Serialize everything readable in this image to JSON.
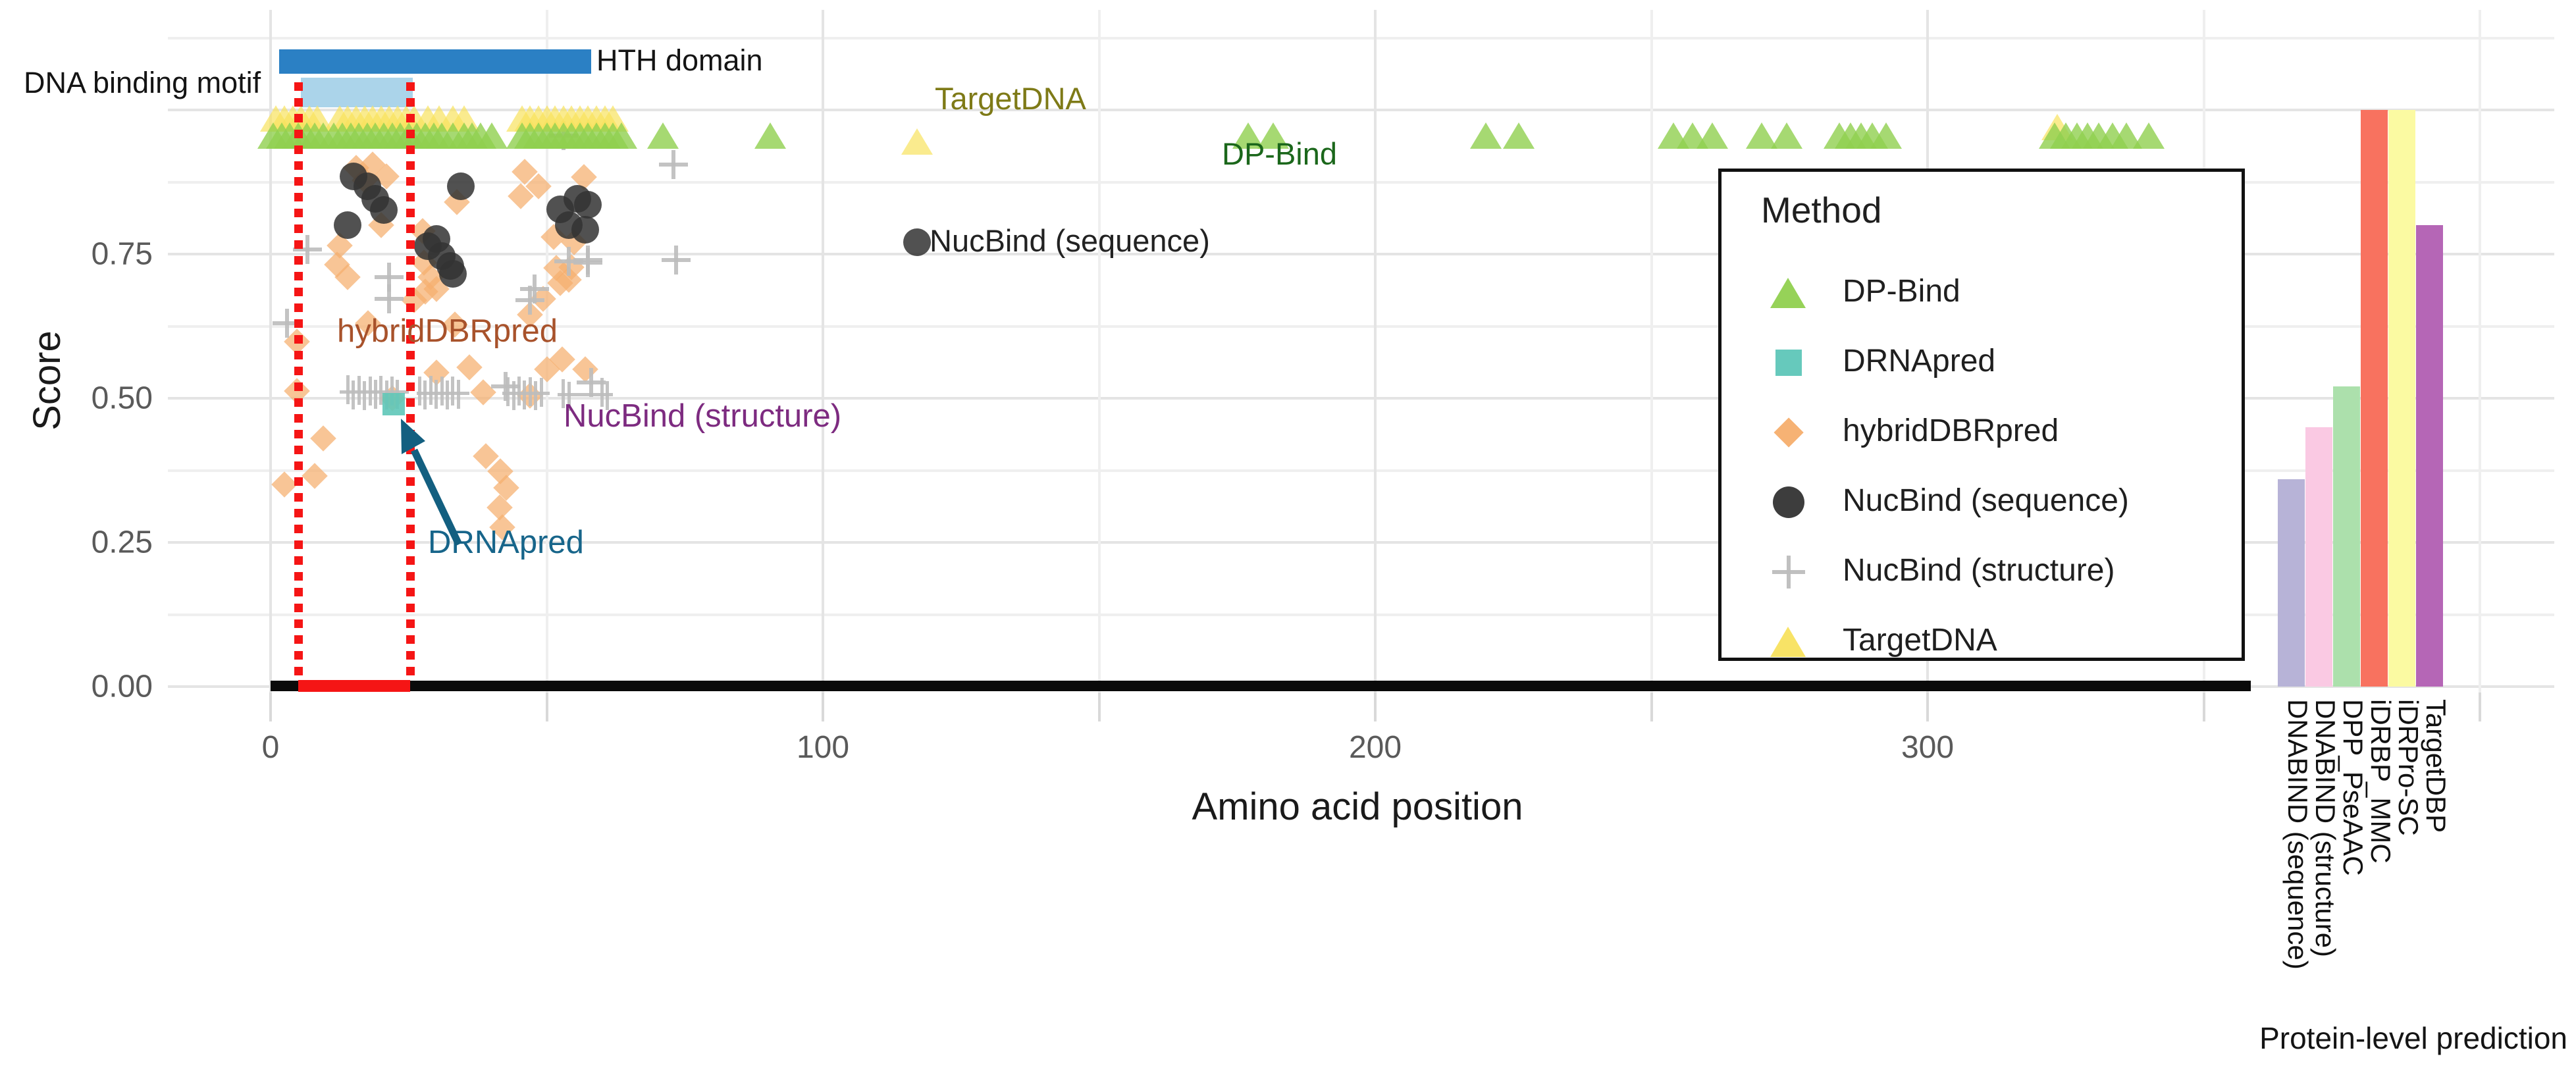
{
  "chart_data": {
    "type": "scatter",
    "title": "",
    "x_axis": {
      "label": "Amino acid position",
      "ticks": [
        0,
        100,
        200,
        300
      ],
      "minor_gridlines": [
        50,
        150,
        250,
        350,
        400
      ],
      "range": [
        -18,
        413
      ]
    },
    "y_axis": {
      "label": "Score",
      "ticks": [
        {
          "value": 0.0,
          "text": "0.00"
        },
        {
          "value": 0.25,
          "text": "0.25"
        },
        {
          "value": 0.5,
          "text": "0.50"
        },
        {
          "value": 0.75,
          "text": "0.75"
        }
      ],
      "major_gridlines": [
        0,
        0.25,
        0.5,
        0.75,
        1.0
      ],
      "minor_gridlines": [
        0.125,
        0.375,
        0.625,
        0.875,
        1.125
      ],
      "range": [
        -0.02,
        1.17
      ]
    },
    "legend": {
      "title": "Method",
      "items": [
        {
          "label": "DP-Bind",
          "marker": "triangle",
          "color": "#90d04f"
        },
        {
          "label": "DRNApred",
          "marker": "square",
          "color": "#5ec6b8"
        },
        {
          "label": "hybridDBRpred",
          "marker": "diamond",
          "color": "#f5ae6d"
        },
        {
          "label": "NucBind (sequence)",
          "marker": "circle",
          "color": "#333333"
        },
        {
          "label": "NucBind (structure)",
          "marker": "plus",
          "color": "#bdbdbd"
        },
        {
          "label": "TargetDNA",
          "marker": "triangle",
          "color": "#f8e25e"
        }
      ]
    },
    "series": [
      {
        "name": "hybridDBRpred",
        "marker": "diamond",
        "color": "#f5ae6d",
        "opacity": 0.72,
        "points": [
          [
            15.5,
            0.9
          ],
          [
            18.5,
            0.905
          ],
          [
            17,
            0.878
          ],
          [
            21,
            0.885
          ],
          [
            33.7,
            0.84
          ],
          [
            46,
            0.893
          ],
          [
            48.5,
            0.868
          ],
          [
            45.3,
            0.85
          ],
          [
            56.7,
            0.883
          ],
          [
            20,
            0.8
          ],
          [
            27.5,
            0.79
          ],
          [
            12.5,
            0.765
          ],
          [
            51.2,
            0.78
          ],
          [
            55,
            0.77
          ],
          [
            12,
            0.732
          ],
          [
            14,
            0.71
          ],
          [
            27.8,
            0.735
          ],
          [
            29,
            0.71
          ],
          [
            30,
            0.69
          ],
          [
            28,
            0.685
          ],
          [
            51.7,
            0.726
          ],
          [
            54.5,
            0.727
          ],
          [
            52.4,
            0.7
          ],
          [
            54,
            0.705
          ],
          [
            26,
            0.67
          ],
          [
            49.3,
            0.672
          ],
          [
            47,
            0.645
          ],
          [
            17.6,
            0.63
          ],
          [
            33.4,
            0.628
          ],
          [
            4.8,
            0.598
          ],
          [
            30,
            0.545
          ],
          [
            36,
            0.554
          ],
          [
            52.8,
            0.567
          ],
          [
            50,
            0.55
          ],
          [
            57,
            0.55
          ],
          [
            22,
            0.5
          ],
          [
            4.8,
            0.512
          ],
          [
            38.5,
            0.51
          ],
          [
            47,
            0.505
          ],
          [
            9.5,
            0.43
          ],
          [
            39,
            0.4
          ],
          [
            8,
            0.365
          ],
          [
            41.6,
            0.373
          ],
          [
            42.7,
            0.345
          ],
          [
            2.5,
            0.35
          ],
          [
            41.5,
            0.31
          ],
          [
            42,
            0.276
          ]
        ]
      },
      {
        "name": "NucBind (sequence)",
        "marker": "circle",
        "color": "#333333",
        "opacity": 0.85,
        "points": [
          [
            15,
            0.885
          ],
          [
            17.5,
            0.868
          ],
          [
            19,
            0.846
          ],
          [
            20.5,
            0.826
          ],
          [
            14,
            0.8
          ],
          [
            34.5,
            0.868
          ],
          [
            28.5,
            0.764
          ],
          [
            30,
            0.776
          ],
          [
            31,
            0.747
          ],
          [
            32.5,
            0.73
          ],
          [
            33,
            0.716
          ],
          [
            52.5,
            0.828
          ],
          [
            55.5,
            0.846
          ],
          [
            57.5,
            0.836
          ],
          [
            54,
            0.8
          ],
          [
            57,
            0.792
          ],
          [
            117,
            0.77
          ]
        ]
      },
      {
        "name": "NucBind (structure)",
        "marker": "plus",
        "color": "#bdbdbd",
        "opacity": 0.9,
        "points": [
          [
            6.7,
            0.758
          ],
          [
            3,
            0.63
          ],
          [
            21.5,
            0.71
          ],
          [
            21.4,
            0.672
          ],
          [
            53,
            0.955
          ],
          [
            73,
            0.905
          ],
          [
            73.4,
            0.74
          ],
          [
            54,
            0.738
          ],
          [
            57.5,
            0.735
          ],
          [
            47,
            0.67
          ],
          [
            47.8,
            0.69
          ],
          [
            57.4,
            0.74
          ],
          [
            58,
            0.527
          ],
          [
            42.5,
            0.52
          ]
        ],
        "comb_points": [
          [
            14,
            0.515
          ],
          [
            15,
            0.506
          ],
          [
            16,
            0.514
          ],
          [
            17,
            0.505
          ],
          [
            18,
            0.513
          ],
          [
            19,
            0.507
          ],
          [
            20,
            0.514
          ],
          [
            21,
            0.506
          ],
          [
            22,
            0.512
          ],
          [
            23,
            0.507
          ],
          [
            27,
            0.513
          ],
          [
            28,
            0.506
          ],
          [
            29,
            0.514
          ],
          [
            30,
            0.507
          ],
          [
            31,
            0.512
          ],
          [
            32,
            0.506
          ],
          [
            33,
            0.513
          ],
          [
            34,
            0.507
          ],
          [
            43,
            0.511
          ],
          [
            44,
            0.505
          ],
          [
            45,
            0.512
          ],
          [
            46,
            0.506
          ],
          [
            47,
            0.511
          ],
          [
            48,
            0.505
          ],
          [
            49,
            0.51
          ],
          [
            53,
            0.508
          ],
          [
            54,
            0.503
          ],
          [
            60,
            0.51
          ],
          [
            61,
            0.505
          ]
        ],
        "hbars": [
          {
            "x1": 12.5,
            "x2": 25,
            "s": 0.511
          },
          {
            "x1": 26.5,
            "x2": 36,
            "s": 0.509
          },
          {
            "x1": 42,
            "x2": 50.5,
            "s": 0.508
          },
          {
            "x1": 52,
            "x2": 62,
            "s": 0.506
          }
        ]
      },
      {
        "name": "DRNApred",
        "marker": "square",
        "color": "#5ec6b8",
        "opacity": 0.9,
        "points": [
          [
            22.3,
            0.49
          ]
        ]
      },
      {
        "name": "TargetDNA",
        "marker": "triangle",
        "color": "#f8e25e",
        "opacity": 0.7,
        "points": [
          [
            1,
            0.985
          ],
          [
            2.5,
            0.985
          ],
          [
            4,
            0.985
          ],
          [
            5.5,
            0.985
          ],
          [
            7,
            0.985
          ],
          [
            8.5,
            0.985
          ],
          [
            12.5,
            0.985
          ],
          [
            14,
            0.985
          ],
          [
            15.5,
            0.985
          ],
          [
            17,
            0.985
          ],
          [
            18.5,
            0.985
          ],
          [
            20,
            0.985
          ],
          [
            21.5,
            0.985
          ],
          [
            23,
            0.985
          ],
          [
            24.5,
            0.985
          ],
          [
            26,
            0.985
          ],
          [
            28.5,
            0.985
          ],
          [
            30.5,
            0.985
          ],
          [
            33,
            0.985
          ],
          [
            35,
            0.985
          ],
          [
            45.5,
            0.985
          ],
          [
            47,
            0.985
          ],
          [
            48.5,
            0.985
          ],
          [
            50,
            0.985
          ],
          [
            51.5,
            0.985
          ],
          [
            53,
            0.985
          ],
          [
            54.5,
            0.985
          ],
          [
            56,
            0.985
          ],
          [
            57.5,
            0.985
          ],
          [
            59,
            0.985
          ],
          [
            60.5,
            0.985
          ],
          [
            62,
            0.985
          ],
          [
            117,
            0.945
          ],
          [
            323.5,
            0.97
          ]
        ]
      },
      {
        "name": "DP-Bind",
        "marker": "triangle",
        "color": "#90d04f",
        "opacity": 0.8,
        "points": [
          [
            0.5,
            0.955
          ],
          [
            2,
            0.955
          ],
          [
            3.5,
            0.955
          ],
          [
            5,
            0.955
          ],
          [
            6.5,
            0.955
          ],
          [
            8,
            0.955
          ],
          [
            9.5,
            0.955
          ],
          [
            11.5,
            0.955
          ],
          [
            13,
            0.955
          ],
          [
            14.5,
            0.955
          ],
          [
            16,
            0.955
          ],
          [
            17.5,
            0.955
          ],
          [
            19,
            0.955
          ],
          [
            20.5,
            0.955
          ],
          [
            22,
            0.955
          ],
          [
            23.5,
            0.955
          ],
          [
            25,
            0.955
          ],
          [
            26.5,
            0.955
          ],
          [
            28,
            0.955
          ],
          [
            29.5,
            0.955
          ],
          [
            31,
            0.955
          ],
          [
            33,
            0.955
          ],
          [
            35,
            0.955
          ],
          [
            36.5,
            0.955
          ],
          [
            38,
            0.955
          ],
          [
            40,
            0.955
          ],
          [
            45.5,
            0.955
          ],
          [
            47,
            0.955
          ],
          [
            48.5,
            0.955
          ],
          [
            50,
            0.955
          ],
          [
            51.5,
            0.955
          ],
          [
            53,
            0.955
          ],
          [
            54.5,
            0.955
          ],
          [
            56,
            0.955
          ],
          [
            57.5,
            0.955
          ],
          [
            59,
            0.955
          ],
          [
            60.5,
            0.955
          ],
          [
            62,
            0.955
          ],
          [
            63.5,
            0.955
          ],
          [
            71,
            0.955
          ],
          [
            90.5,
            0.955
          ],
          [
            177,
            0.955
          ],
          [
            181.5,
            0.955
          ],
          [
            220,
            0.955
          ],
          [
            226,
            0.955
          ],
          [
            254,
            0.955
          ],
          [
            257.5,
            0.955
          ],
          [
            261,
            0.955
          ],
          [
            270,
            0.955
          ],
          [
            274.5,
            0.955
          ],
          [
            284,
            0.955
          ],
          [
            286,
            0.955
          ],
          [
            288,
            0.955
          ],
          [
            290,
            0.955
          ],
          [
            292.5,
            0.955
          ],
          [
            323,
            0.955
          ],
          [
            325,
            0.955
          ],
          [
            327,
            0.955
          ],
          [
            329,
            0.955
          ],
          [
            331,
            0.955
          ],
          [
            333.5,
            0.955
          ],
          [
            336,
            0.955
          ],
          [
            340,
            0.955
          ]
        ]
      }
    ],
    "annotations": {
      "hth_domain": {
        "label": "HTH domain",
        "x_start": 1.5,
        "x_end": 58,
        "score_top": 1.105,
        "score_bottom": 1.063,
        "color": "#2b80c4"
      },
      "dna_binding_motif": {
        "label": "DNA binding motif",
        "x_start": 5.5,
        "x_end": 25.7,
        "score_top": 1.056,
        "score_bottom": 1.005,
        "color": "#abd4ea"
      },
      "motif_region": {
        "x_start": 5,
        "x_end": 25.3,
        "color": "#f51515"
      },
      "series_labels": {
        "targetdna": "TargetDNA",
        "dpbind": "DP-Bind",
        "nucbind_sequence": "NucBind (sequence)",
        "hybriddbrpred": "hybridDBRpred",
        "nucbind_structure": "NucBind (structure)",
        "drnapred": "DRNApred"
      }
    },
    "protein_bars": {
      "axis_label": "Protein-level prediction",
      "bars": [
        {
          "label": "DNABIND (sequence)",
          "value": 0.36,
          "color": "#b7b3d7"
        },
        {
          "label": "DNABIND (structure)",
          "value": 0.45,
          "color": "#fac9e3"
        },
        {
          "label": "DPP_PseAAC",
          "value": 0.52,
          "color": "#ace0ac"
        },
        {
          "label": "iDRBP_MMC",
          "value": 1.0,
          "color": "#f8725f"
        },
        {
          "label": "iDRPro-SC",
          "value": 1.0,
          "color": "#fbfaa2"
        },
        {
          "label": "TargetDBP",
          "value": 0.8,
          "color": "#b566b6"
        }
      ]
    }
  }
}
